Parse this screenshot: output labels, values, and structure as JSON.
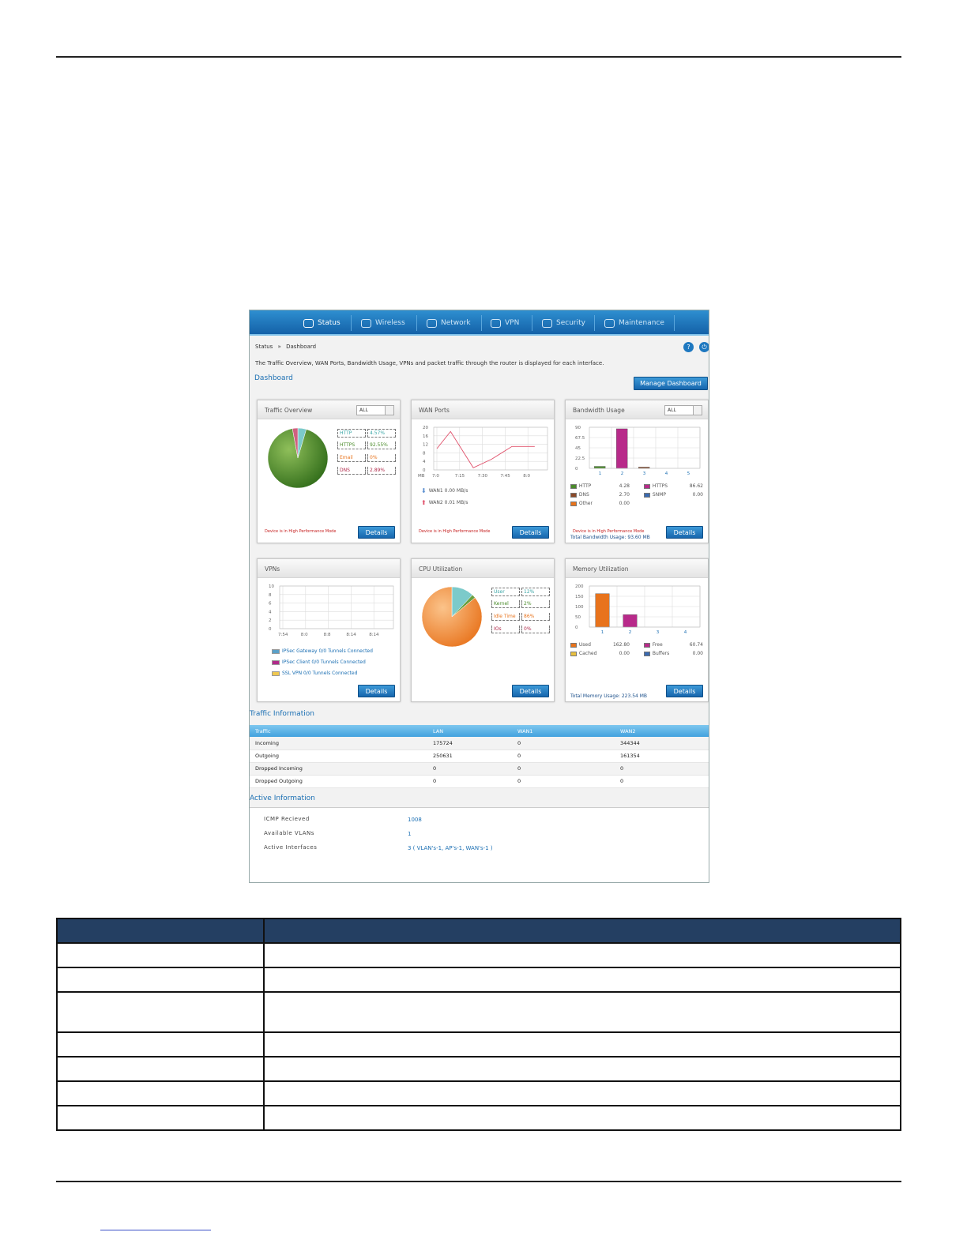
{
  "nav": {
    "tabs": [
      {
        "label": "Status",
        "icon": "gauge-icon"
      },
      {
        "label": "Wireless",
        "icon": "wifi-icon"
      },
      {
        "label": "Network",
        "icon": "server-icon"
      },
      {
        "label": "VPN",
        "icon": "cloud-icon"
      },
      {
        "label": "Security",
        "icon": "lock-icon"
      },
      {
        "label": "Maintenance",
        "icon": "gear-icon"
      }
    ]
  },
  "breadcrumb": {
    "parent": "Status",
    "sep": "»",
    "current": "Dashboard"
  },
  "description": "The Traffic Overview, WAN Ports, Bandwidth Usage, VPNs and packet traffic through the router is displayed for each interface.",
  "dashboard": {
    "title": "Dashboard",
    "manage_label": "Manage Dashboard",
    "details_label": "Details",
    "mode_note": "Device is in High Performance Mode"
  },
  "traffic_overview": {
    "title": "Traffic Overview",
    "filter": "ALL",
    "items": [
      {
        "label": "HTTP",
        "value": "4.57%",
        "color": "#3aa7a7"
      },
      {
        "label": "HTTPS",
        "value": "92.55%",
        "color": "#4a8b2a"
      },
      {
        "label": "Email",
        "value": "0%",
        "color": "#e8731c"
      },
      {
        "label": "DNS",
        "value": "2.89%",
        "color": "#b02a4a"
      }
    ]
  },
  "wan_ports": {
    "title": "WAN Ports",
    "unit": "MB",
    "legend": [
      {
        "label": "WAN1 0.00 MB/s",
        "icon": "arrow-down-icon",
        "color": "#5a8fd0"
      },
      {
        "label": "WAN2 0.01 MB/s",
        "icon": "arrow-up-icon",
        "color": "#e0506a"
      }
    ]
  },
  "bandwidth": {
    "title": "Bandwidth Usage",
    "filter": "ALL",
    "legend": [
      {
        "label": "HTTP",
        "value": "4.28",
        "color": "#4a8b2a"
      },
      {
        "label": "HTTPS",
        "value": "86.62",
        "color": "#b82a8a"
      },
      {
        "label": "DNS",
        "value": "2.70",
        "color": "#8b4a2a"
      },
      {
        "label": "SNMP",
        "value": "0.00",
        "color": "#3a6ab0"
      },
      {
        "label": "Other",
        "value": "0.00",
        "color": "#e8731c"
      }
    ],
    "total": "Total Bandwidth Usage: 93.60 MB"
  },
  "vpns": {
    "title": "VPNs",
    "legend": [
      {
        "label": "IPSec Gateway 0/0 Tunnels Connected",
        "color": "#5aa0c8"
      },
      {
        "label": "IPSec Client 0/0 Tunnels Connected",
        "color": "#b02a8a"
      },
      {
        "label": "SSL VPN 0/0 Tunnels Connected",
        "color": "#f0c850"
      }
    ]
  },
  "cpu": {
    "title": "CPU Utilization",
    "items": [
      {
        "label": "User",
        "value": "12%",
        "color": "#3aa7a7"
      },
      {
        "label": "Kernel",
        "value": "2%",
        "color": "#4a8b2a"
      },
      {
        "label": "Idle Time",
        "value": "86%",
        "color": "#e8731c"
      },
      {
        "label": "IOs",
        "value": "0%",
        "color": "#b02a4a"
      }
    ]
  },
  "memory": {
    "title": "Memory Utilization",
    "legend": [
      {
        "label": "Used",
        "value": "162.80",
        "color": "#e8731c"
      },
      {
        "label": "Free",
        "value": "60.74",
        "color": "#b82a8a"
      },
      {
        "label": "Cached",
        "value": "0.00",
        "color": "#e8c040"
      },
      {
        "label": "Buffers",
        "value": "0.00",
        "color": "#3a6ab0"
      }
    ],
    "total": "Total Memory Usage: 223.54 MB"
  },
  "traffic_info": {
    "title": "Traffic Information",
    "headers": [
      "Traffic",
      "LAN",
      "WAN1",
      "WAN2"
    ],
    "rows": [
      [
        "Incoming",
        "175724",
        "0",
        "344344"
      ],
      [
        "Outgoing",
        "250631",
        "0",
        "161354"
      ],
      [
        "Dropped Incoming",
        "0",
        "0",
        "0"
      ],
      [
        "Dropped Outgoing",
        "0",
        "0",
        "0"
      ]
    ]
  },
  "active_info": {
    "title": "Active Information",
    "rows": [
      {
        "label": "ICMP Recieved",
        "value": "1008"
      },
      {
        "label": "Available VLANs",
        "value": "1"
      },
      {
        "label": "Active Interfaces",
        "value": "3 ( VLAN's-1, AP's-1, WAN's-1 )"
      }
    ]
  },
  "chart_data": [
    {
      "type": "pie",
      "categories": [
        "HTTP",
        "HTTPS",
        "Email",
        "DNS"
      ],
      "values": [
        4.57,
        92.55,
        0,
        2.89
      ]
    },
    {
      "type": "line",
      "x": [
        "7:0",
        "7:15",
        "7:30",
        "7:45",
        "8:0"
      ],
      "ylim": [
        0,
        20
      ],
      "yticks": [
        0,
        4,
        8,
        12,
        16,
        20
      ],
      "ylabel": "MB",
      "series": [
        {
          "name": "WAN2",
          "x": [
            0,
            0.6,
            1.6,
            2.4,
            3.3,
            4.3
          ],
          "values": [
            10,
            18,
            1,
            5,
            11,
            11
          ]
        }
      ]
    },
    {
      "type": "bar",
      "categories": [
        "1",
        "2",
        "3",
        "4",
        "5"
      ],
      "values": [
        4.28,
        86.62,
        2.7,
        0,
        0
      ],
      "ylim": [
        0,
        90
      ],
      "yticks": [
        "0",
        "22.5",
        "45",
        "67.5",
        "90"
      ]
    },
    {
      "type": "line",
      "x": [
        "7:54",
        "8:0",
        "8:8",
        "8:14",
        "8:14"
      ],
      "ylim": [
        0,
        10
      ],
      "yticks": [
        0,
        2,
        4,
        6,
        8,
        10
      ],
      "series": []
    },
    {
      "type": "pie",
      "categories": [
        "User",
        "Kernel",
        "Idle Time",
        "IOs"
      ],
      "values": [
        12,
        2,
        86,
        0
      ]
    },
    {
      "type": "bar",
      "categories": [
        "1",
        "2",
        "3",
        "4"
      ],
      "values": [
        162.8,
        60.74,
        0,
        0
      ],
      "ylim": [
        0,
        200
      ],
      "yticks": [
        "0",
        "50",
        "100",
        "150",
        "200"
      ]
    }
  ]
}
